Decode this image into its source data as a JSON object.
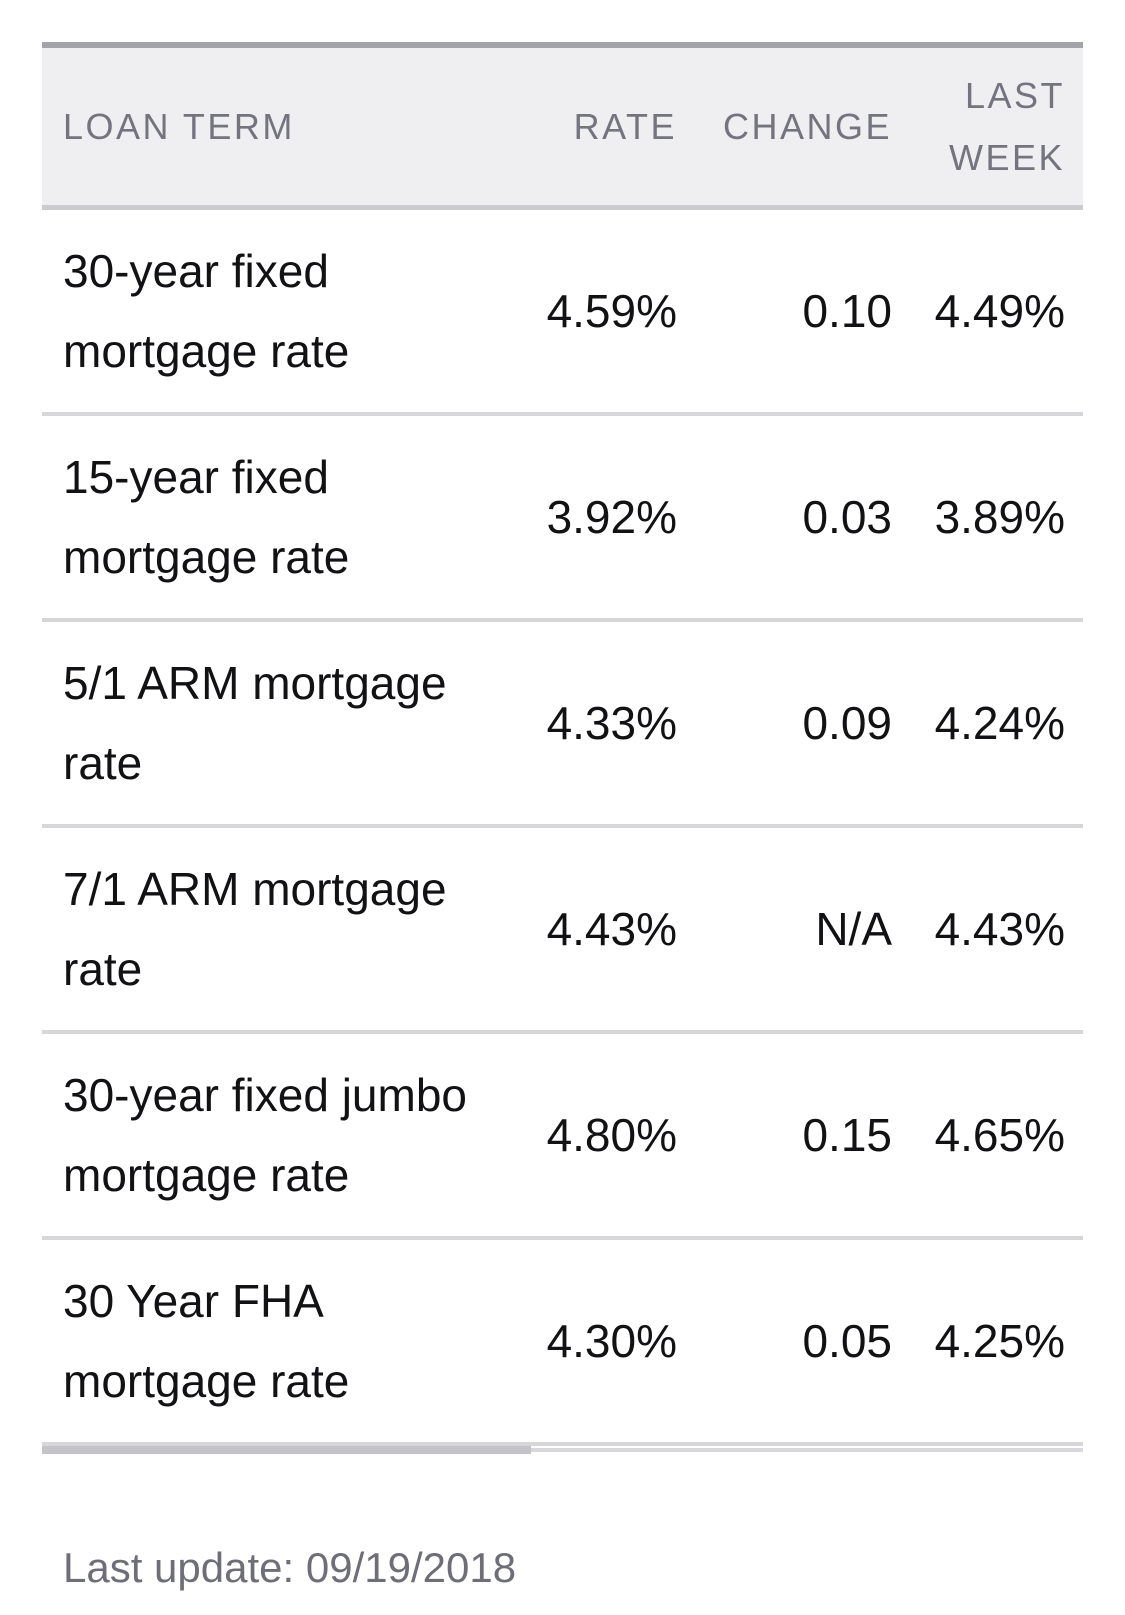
{
  "table": {
    "columns": [
      {
        "key": "term",
        "label": "LOAN TERM"
      },
      {
        "key": "rate",
        "label": "RATE"
      },
      {
        "key": "change",
        "label": "CHANGE"
      },
      {
        "key": "last_week",
        "label": "LAST\nWEEK"
      }
    ],
    "rows": [
      {
        "term": "30-year fixed\nmortgage rate",
        "rate": "4.59%",
        "change": "0.10",
        "last_week": "4.49%"
      },
      {
        "term": "15-year fixed\nmortgage rate",
        "rate": "3.92%",
        "change": "0.03",
        "last_week": "3.89%"
      },
      {
        "term": "5/1 ARM mortgage\nrate",
        "rate": "4.33%",
        "change": "0.09",
        "last_week": "4.24%"
      },
      {
        "term": "7/1 ARM mortgage\nrate",
        "rate": "4.43%",
        "change": "N/A",
        "last_week": "4.43%"
      },
      {
        "term": "30-year fixed jumbo\nmortgage rate",
        "rate": "4.80%",
        "change": "0.15",
        "last_week": "4.65%"
      },
      {
        "term": "30 Year FHA\nmortgage rate",
        "rate": "4.30%",
        "change": "0.05",
        "last_week": "4.25%"
      }
    ]
  },
  "footer": {
    "last_update": "Last update: 09/19/2018"
  },
  "colors": {
    "header_background": "#efeff1",
    "header_text": "#74747f",
    "body_text": "#121215",
    "top_border": "#a3a3aa",
    "header_bottom_border": "#cbcbd0",
    "row_divider": "#d7d7da",
    "scrollbar_thumb": "#c3c3c9",
    "footer_text": "#6e6e79"
  }
}
